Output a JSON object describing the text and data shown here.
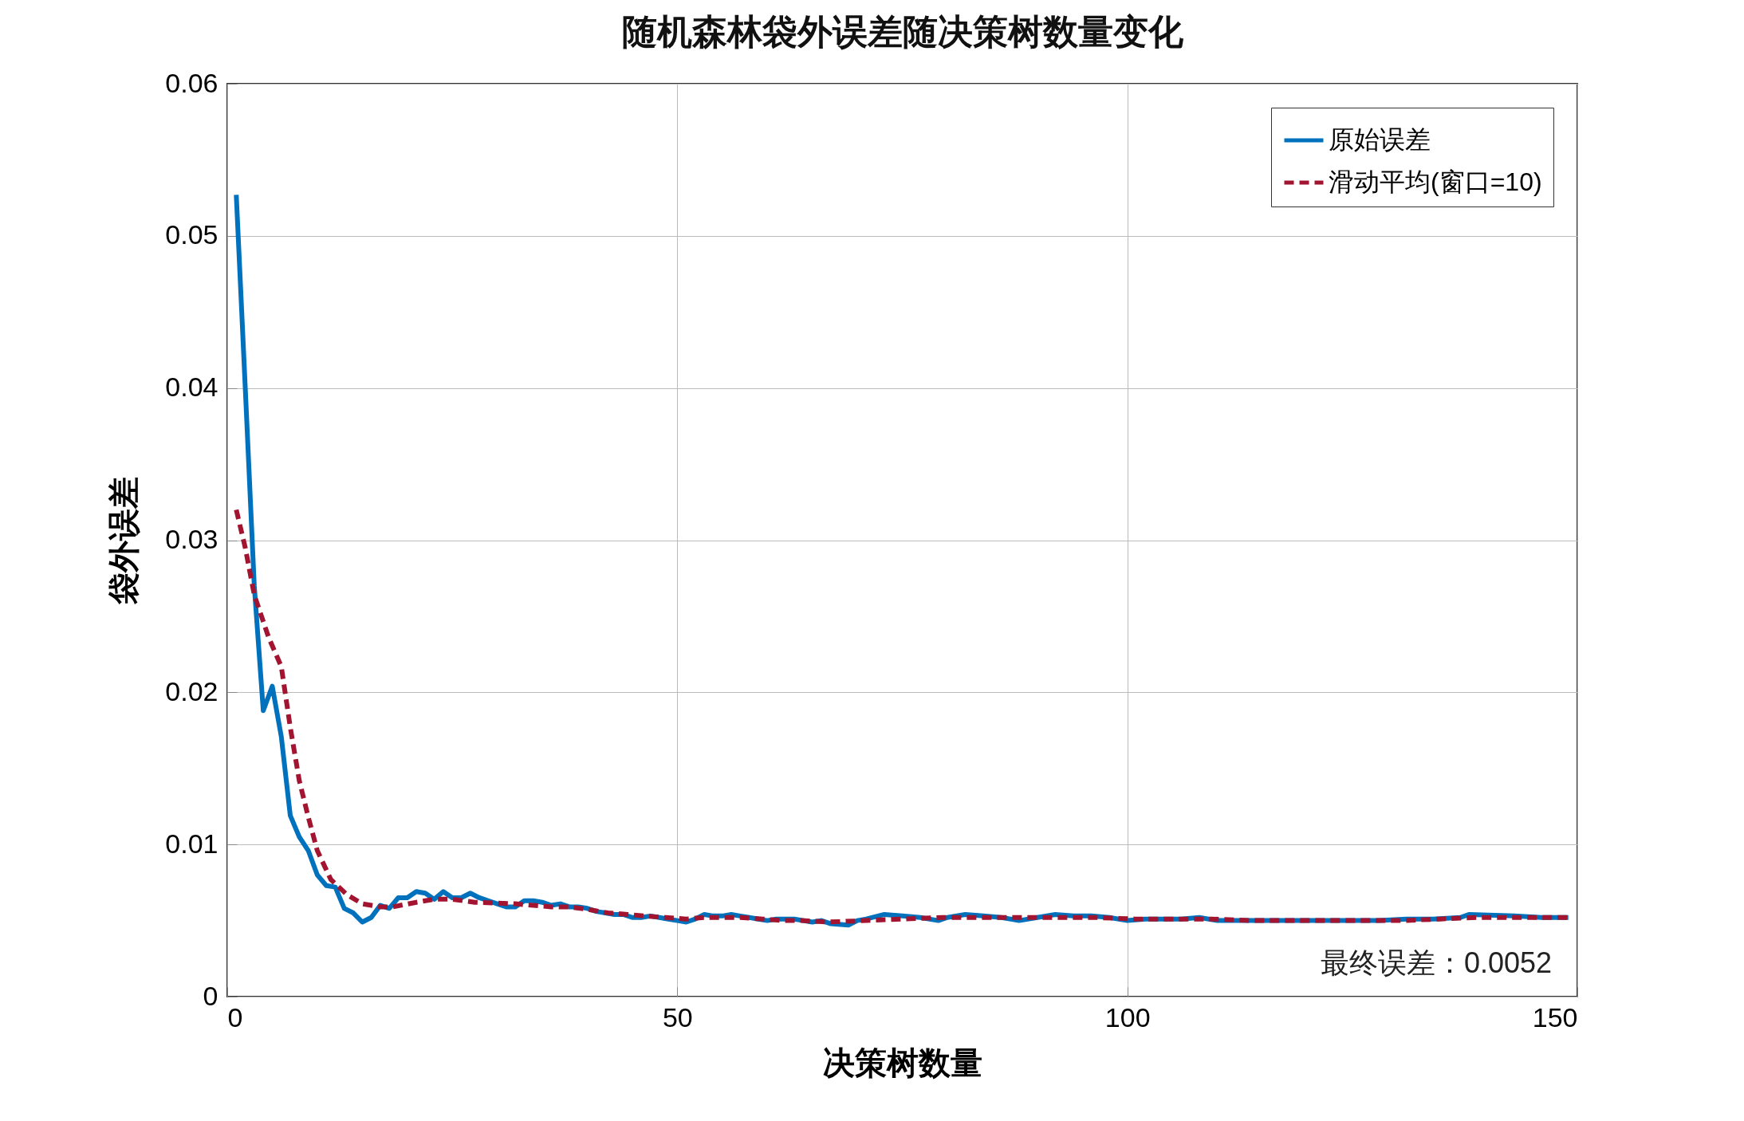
{
  "chart_data": {
    "type": "line",
    "title": "随机森林袋外误差随决策树数量变化",
    "xlabel": "决策树数量",
    "ylabel": "袋外误差",
    "xlim": [
      0,
      150
    ],
    "xticks": [
      0,
      50,
      100,
      150
    ],
    "ylim": [
      0,
      0.06
    ],
    "yticks": [
      0,
      0.01,
      0.02,
      0.03,
      0.04,
      0.05,
      0.06
    ],
    "grid": true,
    "legend": "top right",
    "annotations": [
      "最终误差：0.0052"
    ],
    "series": [
      {
        "name": "原始误差",
        "color": "#0072bd",
        "line_style": "solid",
        "x": [
          1,
          2,
          3,
          4,
          5,
          6,
          7,
          8,
          9,
          10,
          11,
          12,
          13,
          14,
          15,
          16,
          17,
          18,
          19,
          20,
          21,
          22,
          23,
          24,
          25,
          26,
          27,
          28,
          29,
          30,
          31,
          32,
          33,
          34,
          35,
          36,
          37,
          38,
          39,
          40,
          41,
          42,
          43,
          44,
          45,
          46,
          47,
          48,
          49,
          50,
          51,
          52,
          53,
          54,
          55,
          56,
          57,
          58,
          59,
          60,
          61,
          62,
          63,
          64,
          65,
          66,
          67,
          69,
          70,
          71,
          73,
          75,
          77,
          79,
          80,
          82,
          84,
          86,
          88,
          90,
          92,
          94,
          96,
          98,
          100,
          102,
          104,
          106,
          108,
          110,
          115,
          119,
          123,
          128,
          131,
          134,
          137,
          138,
          143,
          146,
          149
        ],
        "values": [
          0.0527,
          0.04,
          0.027,
          0.0188,
          0.0204,
          0.0171,
          0.0119,
          0.0105,
          0.0096,
          0.008,
          0.0073,
          0.0072,
          0.0058,
          0.0055,
          0.0049,
          0.0052,
          0.006,
          0.0058,
          0.0065,
          0.0065,
          0.0069,
          0.0068,
          0.0064,
          0.0069,
          0.0065,
          0.0065,
          0.0068,
          0.0065,
          0.0063,
          0.0061,
          0.0059,
          0.0059,
          0.0063,
          0.0063,
          0.0062,
          0.006,
          0.0061,
          0.0059,
          0.0059,
          0.0058,
          0.0056,
          0.0055,
          0.0054,
          0.0054,
          0.0052,
          0.0052,
          0.0053,
          0.0052,
          0.0051,
          0.005,
          0.0049,
          0.0051,
          0.0054,
          0.0053,
          0.0053,
          0.0054,
          0.0053,
          0.0052,
          0.0051,
          0.005,
          0.0051,
          0.0051,
          0.0051,
          0.005,
          0.0049,
          0.005,
          0.0048,
          0.0047,
          0.005,
          0.0051,
          0.0054,
          0.0053,
          0.0052,
          0.005,
          0.0052,
          0.0054,
          0.0053,
          0.0052,
          0.005,
          0.0052,
          0.0054,
          0.0053,
          0.0053,
          0.0052,
          0.005,
          0.0051,
          0.0051,
          0.0051,
          0.0052,
          0.005,
          0.005,
          0.005,
          0.005,
          0.005,
          0.0051,
          0.0051,
          0.0052,
          0.0054,
          0.0053,
          0.0052,
          0.0052
        ]
      },
      {
        "name": "滑动平均(窗口=10)",
        "color": "#a2142f",
        "line_style": "dashed",
        "x": [
          1,
          2,
          3,
          4.6,
          6,
          7,
          8,
          9,
          10,
          11.5,
          13.3,
          15,
          17,
          18.4,
          21,
          23,
          25,
          27.5,
          32,
          34,
          36,
          38,
          40.4,
          42.3,
          44.5,
          46.4,
          48.7,
          51,
          53,
          55,
          57,
          59.5,
          61.7,
          63.8,
          66.7,
          71,
          75,
          79.5,
          83.6,
          87.9,
          92.2,
          96.5,
          100.8,
          105,
          109.4,
          113.6,
          117.7,
          122,
          126.3,
          130.6,
          134.7,
          139,
          143,
          147.4,
          149
        ],
        "values": [
          0.032,
          0.0295,
          0.0264,
          0.0236,
          0.0217,
          0.0177,
          0.0142,
          0.0118,
          0.0096,
          0.0077,
          0.0067,
          0.0061,
          0.0059,
          0.0059,
          0.0062,
          0.0064,
          0.0064,
          0.0062,
          0.0061,
          0.006,
          0.0059,
          0.0059,
          0.0057,
          0.0055,
          0.0054,
          0.0053,
          0.0052,
          0.0051,
          0.0052,
          0.0052,
          0.0052,
          0.0051,
          0.005,
          0.005,
          0.0049,
          0.005,
          0.0051,
          0.0052,
          0.0052,
          0.0052,
          0.0052,
          0.0052,
          0.0051,
          0.0051,
          0.0051,
          0.005,
          0.005,
          0.005,
          0.005,
          0.005,
          0.0051,
          0.0052,
          0.0052,
          0.0052,
          0.0052
        ]
      }
    ]
  }
}
